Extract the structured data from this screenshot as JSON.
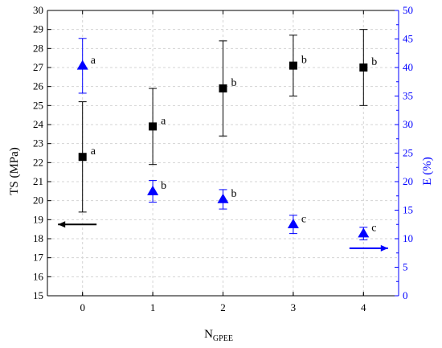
{
  "chart_data": {
    "type": "scatter",
    "x": [
      0,
      1,
      2,
      3,
      4
    ],
    "xlabel": "N",
    "xlabel_sub": "GPEE",
    "xlim": [
      -0.5,
      4.5
    ],
    "x_ticks": [
      "0",
      "1",
      "2",
      "3",
      "4"
    ],
    "left_axis": {
      "label": "TS (MPa)",
      "lim": [
        15,
        30
      ],
      "ticks": [
        "15",
        "16",
        "17",
        "18",
        "19",
        "20",
        "21",
        "22",
        "23",
        "24",
        "25",
        "26",
        "27",
        "28",
        "29",
        "30"
      ],
      "color": "#000000"
    },
    "right_axis": {
      "label": "E (%)",
      "lim": [
        0,
        50
      ],
      "ticks": [
        "0",
        "5",
        "10",
        "15",
        "20",
        "25",
        "30",
        "35",
        "40",
        "45",
        "50"
      ],
      "color": "#0000ff"
    },
    "grid": true,
    "series": [
      {
        "axis": "left",
        "marker": "square",
        "color": "#000000",
        "values": [
          22.3,
          23.9,
          25.9,
          27.1,
          27.0
        ],
        "errors": [
          2.9,
          2.0,
          2.5,
          1.6,
          2.0
        ],
        "labels": [
          "a",
          "a",
          "b",
          "b",
          "b"
        ]
      },
      {
        "axis": "right",
        "marker": "triangle",
        "color": "#0000ff",
        "values": [
          40.3,
          18.3,
          16.9,
          12.5,
          10.9
        ],
        "errors": [
          4.8,
          1.9,
          1.7,
          1.6,
          1.1
        ],
        "labels": [
          "a",
          "b",
          "b",
          "c",
          "c"
        ]
      }
    ],
    "arrows": [
      {
        "direction": "left",
        "color": "#000000",
        "x": 0.2,
        "y": 18.75
      },
      {
        "direction": "right",
        "color": "#0000ff",
        "x": 3.8,
        "y": 17.5
      }
    ]
  }
}
